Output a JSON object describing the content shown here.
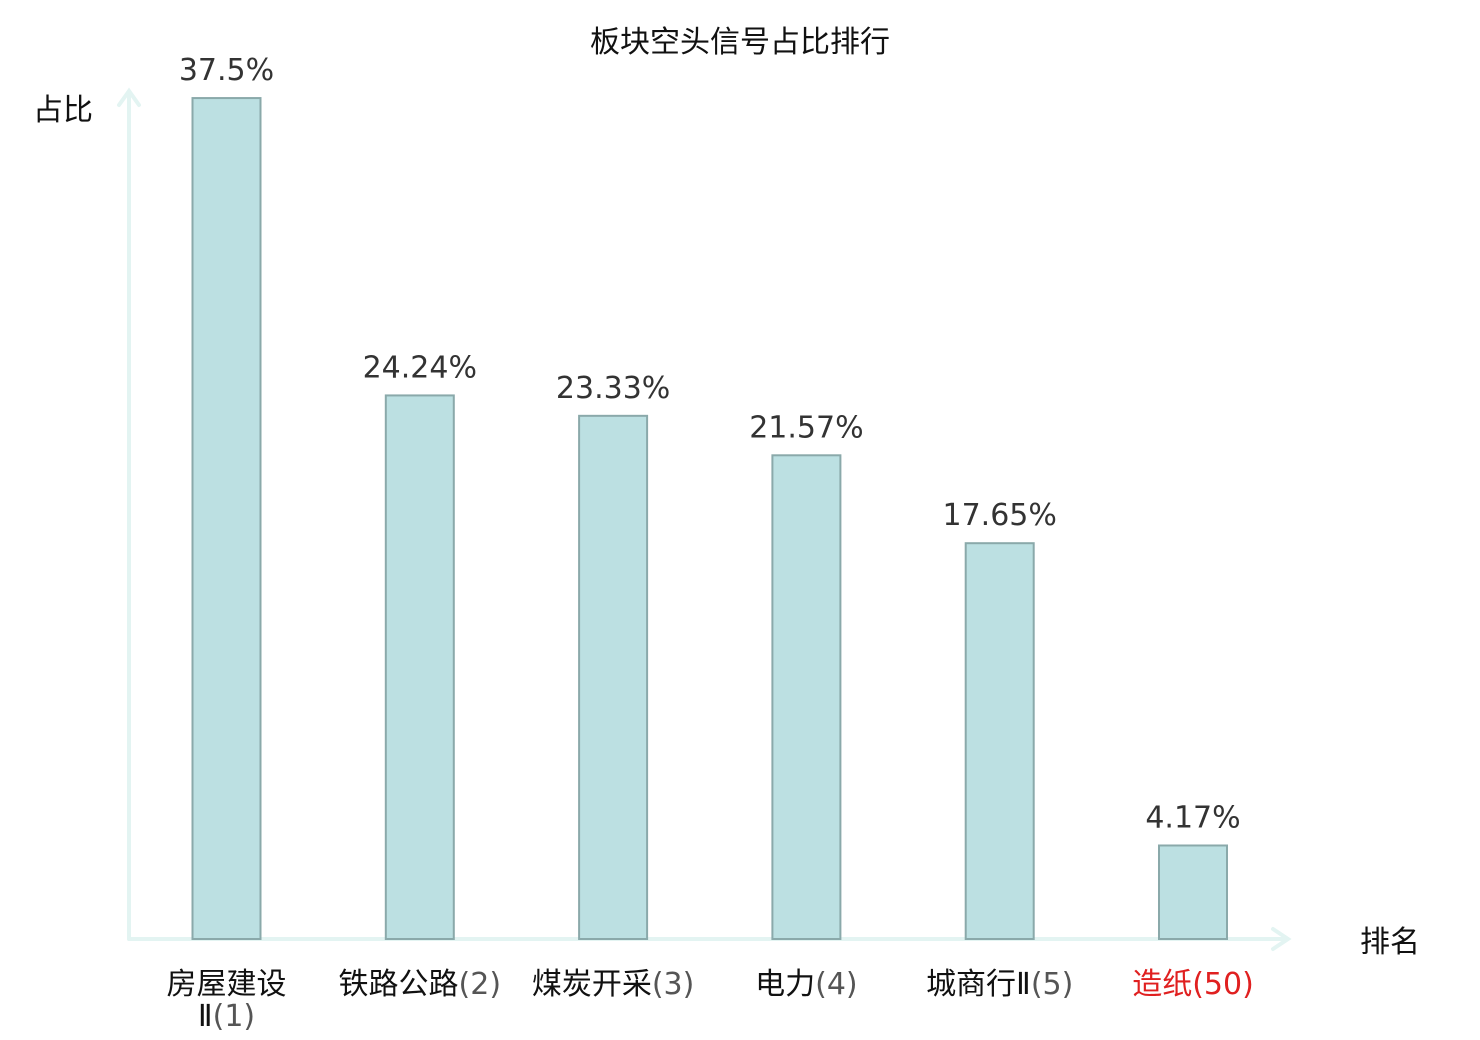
{
  "colors": {
    "bar_fill": "#bce0e2",
    "bar_stroke": "#8aa9aa",
    "axis": "#e3f4f2",
    "highlight": "#e02020"
  },
  "chart_data": {
    "type": "bar",
    "title": "板块空头信号占比排行",
    "ylabel": "占比",
    "xlabel": "排名",
    "ylim": [
      0,
      40
    ],
    "grid": false,
    "categories": [
      {
        "name": "房屋建设Ⅱ",
        "rank": "(1)",
        "highlight": false
      },
      {
        "name": "铁路公路",
        "rank": "(2)",
        "highlight": false
      },
      {
        "name": "煤炭开采",
        "rank": "(3)",
        "highlight": false
      },
      {
        "name": "电力",
        "rank": "(4)",
        "highlight": false
      },
      {
        "name": "城商行Ⅱ",
        "rank": "(5)",
        "highlight": false
      },
      {
        "name": "造纸",
        "rank": "(50)",
        "highlight": true
      }
    ],
    "values": [
      37.5,
      24.24,
      23.33,
      21.57,
      17.65,
      4.17
    ],
    "value_labels": [
      "37.5%",
      "24.24%",
      "23.33%",
      "21.57%",
      "17.65%",
      "4.17%"
    ]
  }
}
